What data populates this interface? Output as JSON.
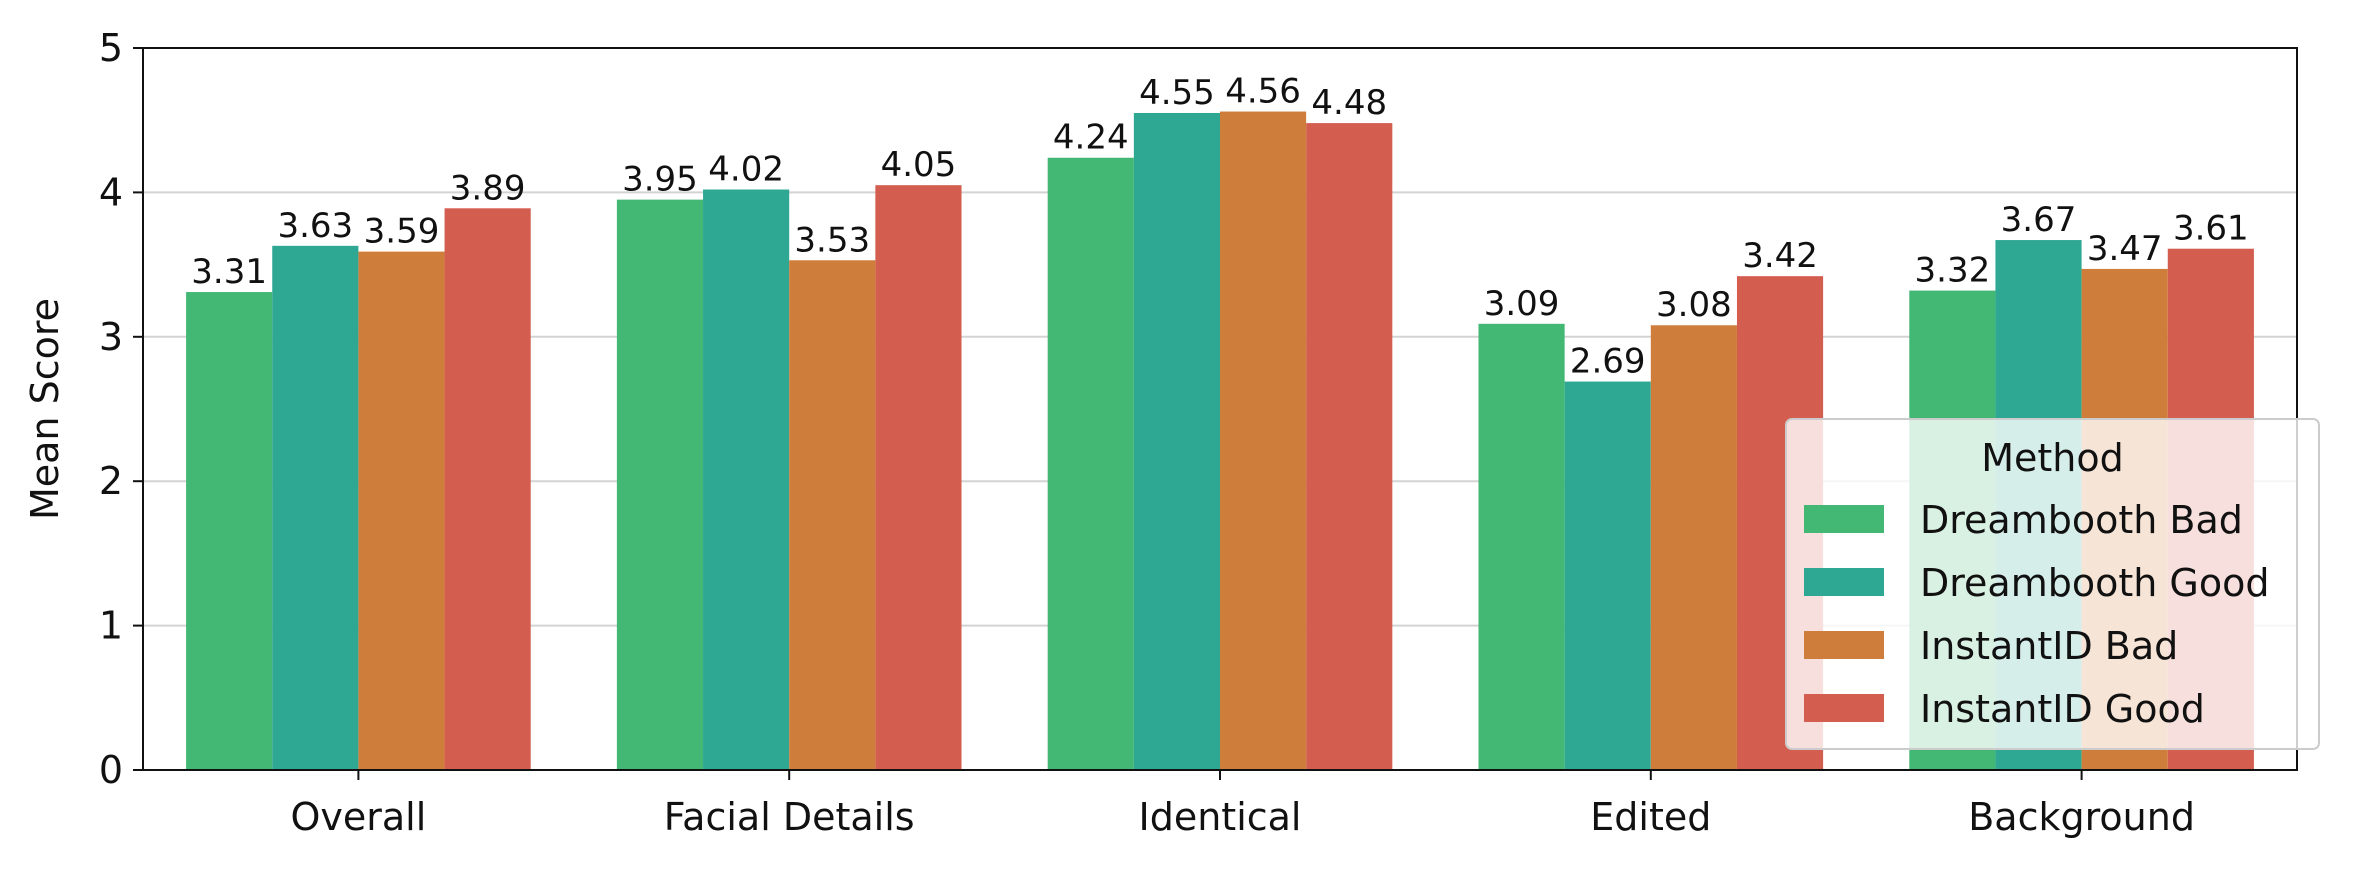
{
  "chart_data": {
    "type": "bar",
    "categories": [
      "Overall",
      "Facial Details",
      "Identical",
      "Edited",
      "Background"
    ],
    "series": [
      {
        "name": "Dreambooth Bad",
        "color": "#43b874",
        "values": [
          3.31,
          3.95,
          4.24,
          3.09,
          3.32
        ],
        "labels": [
          "3.31",
          "3.95",
          "4.24",
          "3.09",
          "3.32"
        ]
      },
      {
        "name": "Dreambooth Good",
        "color": "#2ea893",
        "values": [
          3.63,
          4.02,
          4.55,
          2.69,
          3.67
        ],
        "labels": [
          "3.63",
          "4.02",
          "4.55",
          "2.69",
          "3.67"
        ]
      },
      {
        "name": "InstantID Bad",
        "color": "#cf7d3a",
        "values": [
          3.59,
          3.53,
          4.56,
          3.08,
          3.47
        ],
        "labels": [
          "3.59",
          "3.53",
          "4.56",
          "3.08",
          "3.47"
        ]
      },
      {
        "name": "InstantID Good",
        "color": "#d35e50",
        "values": [
          3.89,
          4.05,
          4.48,
          3.42,
          3.61
        ],
        "labels": [
          "3.89",
          "4.05",
          "4.48",
          "3.42",
          "3.61"
        ]
      }
    ],
    "xlabel": "",
    "ylabel": "Mean Score",
    "ylim": [
      0,
      5
    ],
    "yticks": [
      "0",
      "1",
      "2",
      "3",
      "4",
      "5"
    ],
    "grid": "horizontal",
    "legend": {
      "title": "Method",
      "placement": "lower-right"
    }
  }
}
